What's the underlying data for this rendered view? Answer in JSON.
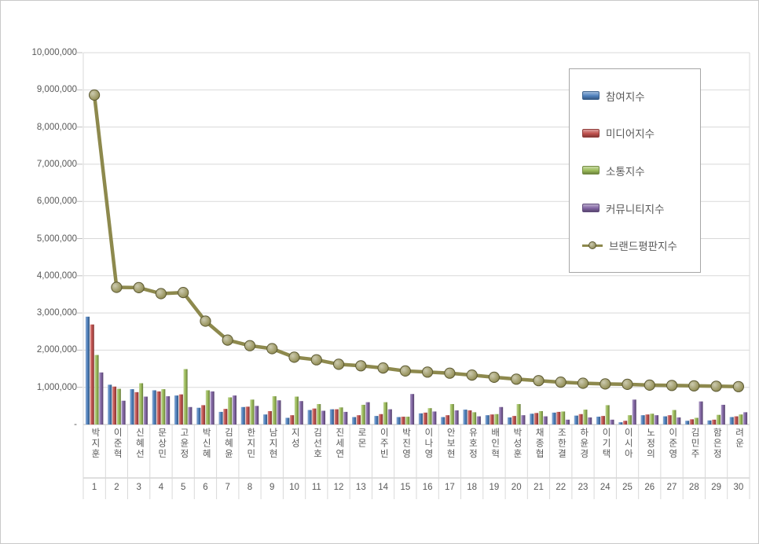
{
  "chart_data": {
    "type": "bar",
    "subtype": "grouped-bars-with-line",
    "title": "",
    "grid": true,
    "legend_position": "right-box",
    "categories": [
      {
        "rank": "1",
        "name": "박지훈"
      },
      {
        "rank": "2",
        "name": "이준혁"
      },
      {
        "rank": "3",
        "name": "신혜선"
      },
      {
        "rank": "4",
        "name": "문상민"
      },
      {
        "rank": "5",
        "name": "고윤정"
      },
      {
        "rank": "6",
        "name": "박신혜"
      },
      {
        "rank": "7",
        "name": "김혜윤"
      },
      {
        "rank": "8",
        "name": "한지민"
      },
      {
        "rank": "9",
        "name": "남지현"
      },
      {
        "rank": "10",
        "name": "지성"
      },
      {
        "rank": "11",
        "name": "김선호"
      },
      {
        "rank": "12",
        "name": "진세연"
      },
      {
        "rank": "13",
        "name": "로몬"
      },
      {
        "rank": "14",
        "name": "이주빈"
      },
      {
        "rank": "15",
        "name": "박진영"
      },
      {
        "rank": "16",
        "name": "이나영"
      },
      {
        "rank": "17",
        "name": "안보현"
      },
      {
        "rank": "18",
        "name": "유호정"
      },
      {
        "rank": "19",
        "name": "배인혁"
      },
      {
        "rank": "20",
        "name": "박성훈"
      },
      {
        "rank": "21",
        "name": "채종협"
      },
      {
        "rank": "22",
        "name": "조한결"
      },
      {
        "rank": "23",
        "name": "하윤경"
      },
      {
        "rank": "24",
        "name": "이기택"
      },
      {
        "rank": "25",
        "name": "이시아"
      },
      {
        "rank": "26",
        "name": "노정의"
      },
      {
        "rank": "27",
        "name": "이준영"
      },
      {
        "rank": "28",
        "name": "김민주"
      },
      {
        "rank": "29",
        "name": "함은정"
      },
      {
        "rank": "30",
        "name": "려운"
      }
    ],
    "series": [
      {
        "name": "참여지수",
        "type": "bar",
        "color": "#4F81BD",
        "values": [
          2900000,
          1070000,
          950000,
          920000,
          780000,
          450000,
          340000,
          470000,
          270000,
          180000,
          390000,
          410000,
          200000,
          230000,
          200000,
          300000,
          200000,
          400000,
          250000,
          190000,
          290000,
          320000,
          240000,
          210000,
          60000,
          250000,
          220000,
          100000,
          110000,
          200000
        ]
      },
      {
        "name": "미디어지수",
        "type": "bar",
        "color": "#C0504D",
        "values": [
          2690000,
          1020000,
          870000,
          890000,
          810000,
          520000,
          420000,
          480000,
          360000,
          250000,
          430000,
          410000,
          250000,
          280000,
          210000,
          320000,
          250000,
          380000,
          270000,
          230000,
          310000,
          340000,
          280000,
          230000,
          100000,
          270000,
          250000,
          140000,
          130000,
          220000
        ]
      },
      {
        "name": "소통지수",
        "type": "bar",
        "color": "#9BBB59",
        "values": [
          1870000,
          960000,
          1110000,
          950000,
          1490000,
          920000,
          730000,
          670000,
          760000,
          750000,
          550000,
          460000,
          530000,
          600000,
          210000,
          440000,
          550000,
          330000,
          280000,
          550000,
          360000,
          350000,
          400000,
          520000,
          250000,
          290000,
          390000,
          180000,
          260000,
          270000
        ]
      },
      {
        "name": "커뮤니티지수",
        "type": "bar",
        "color": "#8064A2",
        "values": [
          1400000,
          640000,
          750000,
          760000,
          470000,
          890000,
          780000,
          500000,
          650000,
          630000,
          370000,
          340000,
          600000,
          410000,
          820000,
          350000,
          380000,
          220000,
          470000,
          250000,
          220000,
          130000,
          190000,
          130000,
          670000,
          250000,
          190000,
          620000,
          530000,
          330000
        ]
      },
      {
        "name": "브랜드평판지수",
        "type": "line",
        "color": "#8D894D",
        "values": [
          8860000,
          3690000,
          3680000,
          3520000,
          3550000,
          2780000,
          2270000,
          2120000,
          2040000,
          1810000,
          1740000,
          1620000,
          1580000,
          1520000,
          1440000,
          1410000,
          1380000,
          1330000,
          1270000,
          1220000,
          1180000,
          1140000,
          1110000,
          1090000,
          1080000,
          1060000,
          1050000,
          1040000,
          1030000,
          1020000
        ]
      }
    ],
    "y_axis": {
      "min": 0,
      "max": 10000000,
      "step": 1000000,
      "tick_labels": [
        "-",
        "1,000,000",
        "2,000,000",
        "3,000,000",
        "4,000,000",
        "5,000,000",
        "6,000,000",
        "7,000,000",
        "8,000,000",
        "9,000,000",
        "10,000,000"
      ]
    }
  }
}
